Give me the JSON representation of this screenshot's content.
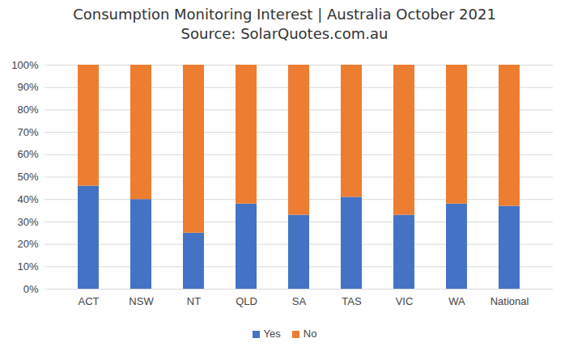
{
  "chart_data": {
    "type": "bar",
    "stacked": true,
    "title": "Consumption Monitoring Interest | Australia October 2021",
    "subtitle": "Source: SolarQuotes.com.au",
    "categories": [
      "ACT",
      "NSW",
      "NT",
      "QLD",
      "SA",
      "TAS",
      "VIC",
      "WA",
      "National"
    ],
    "series": [
      {
        "name": "Yes",
        "color": "#4472c4",
        "values": [
          46,
          40,
          25,
          38,
          33,
          41,
          33,
          38,
          37
        ]
      },
      {
        "name": "No",
        "color": "#ed7d31",
        "values": [
          54,
          60,
          75,
          62,
          67,
          59,
          67,
          62,
          63
        ]
      }
    ],
    "ylim": [
      0,
      100
    ],
    "yticks": [
      {
        "value": 0,
        "label": "0%"
      },
      {
        "value": 10,
        "label": "10%"
      },
      {
        "value": 20,
        "label": "20%"
      },
      {
        "value": 30,
        "label": "30%"
      },
      {
        "value": 40,
        "label": "40%"
      },
      {
        "value": 50,
        "label": "50%"
      },
      {
        "value": 60,
        "label": "60%"
      },
      {
        "value": 70,
        "label": "70%"
      },
      {
        "value": 80,
        "label": "80%"
      },
      {
        "value": 90,
        "label": "90%"
      },
      {
        "value": 100,
        "label": "100%"
      }
    ],
    "grid": true,
    "legend": "bottom"
  }
}
